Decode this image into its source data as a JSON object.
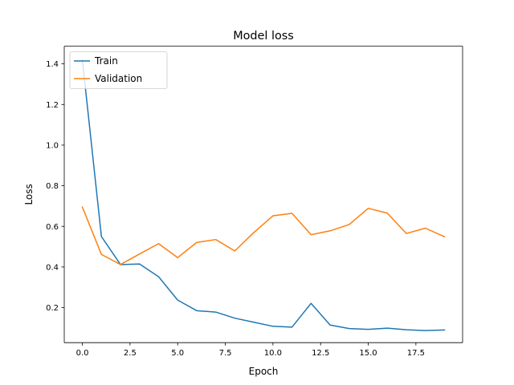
{
  "chart_data": {
    "type": "line",
    "title": "Model loss",
    "xlabel": "Epoch",
    "ylabel": "Loss",
    "xlim": [
      -0.95,
      19.95
    ],
    "ylim": [
      0.0275,
      1.487
    ],
    "xticks": [
      0.0,
      2.5,
      5.0,
      7.5,
      10.0,
      12.5,
      15.0,
      17.5
    ],
    "xtick_labels": [
      "0.0",
      "2.5",
      "5.0",
      "7.5",
      "10.0",
      "12.5",
      "15.0",
      "17.5"
    ],
    "yticks": [
      0.2,
      0.4,
      0.6,
      0.8,
      1.0,
      1.2,
      1.4
    ],
    "ytick_labels": [
      "0.2",
      "0.4",
      "0.6",
      "0.8",
      "1.0",
      "1.2",
      "1.4"
    ],
    "grid": false,
    "legend_position": "upper-left",
    "x": [
      0,
      1,
      2,
      3,
      4,
      5,
      6,
      7,
      8,
      9,
      10,
      11,
      12,
      13,
      14,
      15,
      16,
      17,
      18,
      19
    ],
    "series": [
      {
        "name": "Train",
        "color": "#1f77b4",
        "values": [
          1.42,
          0.55,
          0.412,
          0.415,
          0.352,
          0.237,
          0.185,
          0.178,
          0.148,
          0.128,
          0.108,
          0.104,
          0.221,
          0.114,
          0.097,
          0.093,
          0.099,
          0.091,
          0.087,
          0.09
        ]
      },
      {
        "name": "Validation",
        "color": "#ff7f0e",
        "values": [
          0.695,
          0.462,
          0.412,
          0.464,
          0.515,
          0.446,
          0.521,
          0.535,
          0.479,
          0.57,
          0.652,
          0.664,
          0.559,
          0.578,
          0.609,
          0.689,
          0.665,
          0.565,
          0.591,
          0.549
        ]
      }
    ]
  }
}
